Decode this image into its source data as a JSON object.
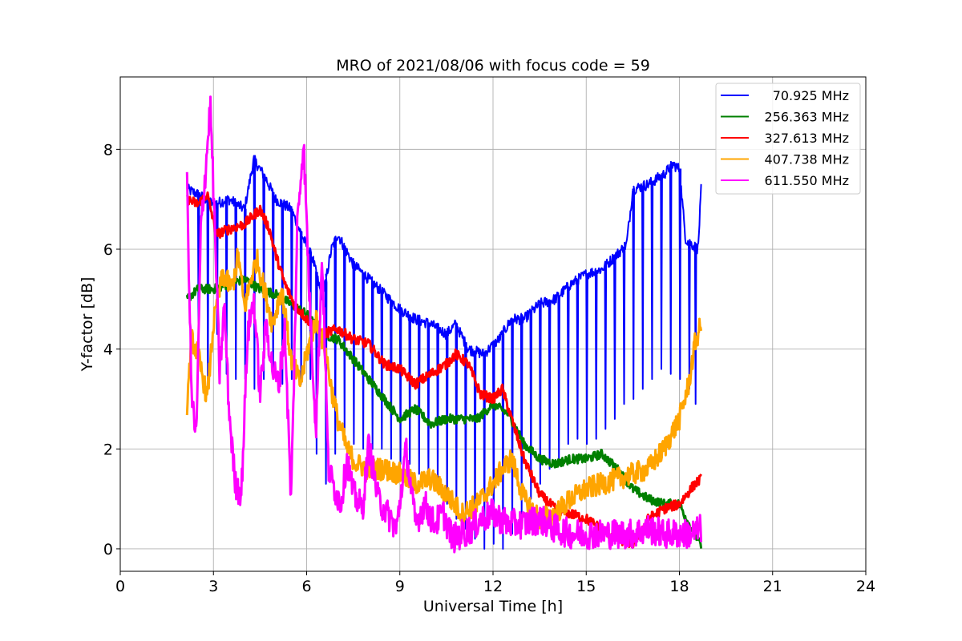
{
  "chart_data": {
    "type": "line",
    "title": "MRO of 2021/08/06 with focus code = 59",
    "xlabel": "Universal Time [h]",
    "ylabel": "Y-factor [dB]",
    "xlim": [
      0,
      24
    ],
    "ylim": [
      -0.45,
      9.45
    ],
    "xticks": [
      0,
      3,
      6,
      9,
      12,
      15,
      18,
      21,
      24
    ],
    "xtick_labels": [
      "0",
      "3",
      "6",
      "9",
      "12",
      "15",
      "18",
      "21",
      "24"
    ],
    "yticks": [
      0,
      2,
      4,
      6,
      8
    ],
    "ytick_labels": [
      "0",
      "2",
      "4",
      "6",
      "8"
    ],
    "grid": true,
    "legend_position": "top-right",
    "note": "Dense noisy time series; values below are a sampled approximation of each trace.",
    "series": [
      {
        "name": "70.925 MHz",
        "color": "#0000ff",
        "x": [
          2.15,
          2.5,
          3.0,
          3.5,
          4.0,
          4.3,
          4.7,
          5.0,
          5.5,
          5.9,
          6.2,
          6.5,
          6.8,
          7.0,
          7.5,
          8.0,
          8.5,
          9.0,
          9.5,
          10.0,
          10.5,
          10.8,
          11.2,
          11.7,
          12.2,
          12.6,
          13.0,
          13.5,
          14.0,
          14.5,
          15.0,
          15.5,
          16.0,
          16.3,
          16.5,
          17.0,
          17.5,
          17.8,
          18.0,
          18.2,
          18.6,
          18.7
        ],
        "y": [
          7.2,
          7.1,
          6.9,
          7.0,
          6.8,
          7.8,
          7.4,
          7.0,
          6.8,
          6.2,
          5.8,
          5.0,
          6.0,
          6.3,
          5.7,
          5.4,
          5.1,
          4.8,
          4.6,
          4.5,
          4.3,
          4.5,
          4.0,
          3.9,
          4.2,
          4.6,
          4.6,
          4.9,
          5.0,
          5.3,
          5.5,
          5.6,
          5.9,
          6.1,
          7.2,
          7.3,
          7.5,
          7.7,
          7.6,
          6.2,
          6.0,
          7.2
        ],
        "dips": [
          [
            2.5,
            4.0
          ],
          [
            2.8,
            3.2
          ],
          [
            3.1,
            4.3
          ],
          [
            3.4,
            3.5
          ],
          [
            3.7,
            3.4
          ],
          [
            4.0,
            3.4
          ],
          [
            4.3,
            3.2
          ],
          [
            4.6,
            3.4
          ],
          [
            4.9,
            3.4
          ],
          [
            5.2,
            3.3
          ],
          [
            5.5,
            3.4
          ],
          [
            5.8,
            3.3
          ],
          [
            6.1,
            3.4
          ],
          [
            6.3,
            1.9
          ],
          [
            6.6,
            1.3
          ],
          [
            6.9,
            1.9
          ],
          [
            7.2,
            2.2
          ],
          [
            7.5,
            2.1
          ],
          [
            7.8,
            2.0
          ],
          [
            8.1,
            2.0
          ],
          [
            8.4,
            2.0
          ],
          [
            8.7,
            1.8
          ],
          [
            9.0,
            1.7
          ],
          [
            9.3,
            1.7
          ],
          [
            9.6,
            1.5
          ],
          [
            9.9,
            1.3
          ],
          [
            10.2,
            1.2
          ],
          [
            10.5,
            0.9
          ],
          [
            10.8,
            0.6
          ],
          [
            11.1,
            0.4
          ],
          [
            11.4,
            0.2
          ],
          [
            11.7,
            0.0
          ],
          [
            12.0,
            0.1
          ],
          [
            12.3,
            0.0
          ],
          [
            12.6,
            0.3
          ],
          [
            12.9,
            0.7
          ],
          [
            13.2,
            1.0
          ],
          [
            13.5,
            1.3
          ],
          [
            13.8,
            1.6
          ],
          [
            14.1,
            1.8
          ],
          [
            14.4,
            2.1
          ],
          [
            14.7,
            2.2
          ],
          [
            15.0,
            2.1
          ],
          [
            15.3,
            2.2
          ],
          [
            15.6,
            2.4
          ],
          [
            15.9,
            2.6
          ],
          [
            16.2,
            2.9
          ],
          [
            16.5,
            3.0
          ],
          [
            16.8,
            3.2
          ],
          [
            17.1,
            3.4
          ],
          [
            17.4,
            3.6
          ],
          [
            17.7,
            3.5
          ],
          [
            18.0,
            3.4
          ],
          [
            18.3,
            3.2
          ],
          [
            18.5,
            2.9
          ]
        ]
      },
      {
        "name": "256.363 MHz",
        "color": "#008000",
        "x": [
          2.15,
          2.5,
          3.0,
          3.5,
          4.0,
          4.5,
          5.0,
          5.5,
          6.0,
          6.5,
          7.0,
          7.5,
          8.0,
          8.5,
          9.0,
          9.5,
          10.0,
          10.5,
          11.0,
          11.5,
          12.0,
          12.5,
          13.0,
          13.5,
          14.0,
          14.5,
          15.0,
          15.5,
          16.0,
          16.5,
          17.0,
          17.5,
          18.0,
          18.3,
          18.5,
          18.7
        ],
        "y": [
          5.0,
          5.2,
          5.2,
          5.3,
          5.4,
          5.2,
          5.1,
          4.9,
          4.7,
          4.3,
          4.2,
          3.8,
          3.4,
          3.0,
          2.6,
          2.8,
          2.5,
          2.6,
          2.6,
          2.6,
          2.9,
          2.7,
          2.1,
          1.8,
          1.7,
          1.8,
          1.8,
          1.9,
          1.6,
          1.2,
          1.0,
          0.9,
          0.9,
          0.5,
          0.3,
          0.05
        ]
      },
      {
        "name": "327.613 MHz",
        "color": "#ff0000",
        "x": [
          2.15,
          2.5,
          2.8,
          3.1,
          3.5,
          4.0,
          4.5,
          4.8,
          5.0,
          5.3,
          5.6,
          6.0,
          6.5,
          7.0,
          7.5,
          8.0,
          8.5,
          9.0,
          9.5,
          10.0,
          10.5,
          10.8,
          11.2,
          11.6,
          12.0,
          12.3,
          12.6,
          13.0,
          13.5,
          14.0,
          14.5,
          15.0,
          15.5,
          16.0,
          16.5,
          17.0,
          17.5,
          18.0,
          18.5,
          18.7
        ],
        "y": [
          7.0,
          6.9,
          7.1,
          6.3,
          6.4,
          6.5,
          6.8,
          6.4,
          5.9,
          5.3,
          4.9,
          4.6,
          4.3,
          4.4,
          4.2,
          4.1,
          3.7,
          3.6,
          3.3,
          3.5,
          3.7,
          3.9,
          3.7,
          3.1,
          3.0,
          3.2,
          2.6,
          1.8,
          1.1,
          0.8,
          0.7,
          0.6,
          0.4,
          0.2,
          0.1,
          0.6,
          0.8,
          0.9,
          1.3,
          1.4
        ]
      },
      {
        "name": "407.738 MHz",
        "color": "#ffa500",
        "x": [
          2.15,
          2.3,
          2.5,
          2.8,
          3.0,
          3.3,
          3.6,
          3.8,
          4.0,
          4.2,
          4.4,
          4.6,
          4.9,
          5.2,
          5.5,
          5.8,
          6.0,
          6.3,
          6.6,
          6.8,
          7.0,
          7.3,
          7.6,
          8.0,
          8.5,
          9.0,
          9.5,
          10.0,
          10.5,
          11.0,
          11.5,
          12.0,
          12.3,
          12.6,
          13.0,
          13.5,
          14.0,
          14.5,
          15.0,
          15.5,
          16.0,
          16.5,
          17.0,
          17.5,
          18.0,
          18.3,
          18.5,
          18.7
        ],
        "y": [
          2.9,
          4.2,
          3.9,
          3.0,
          4.5,
          5.5,
          5.2,
          5.9,
          4.8,
          5.4,
          5.8,
          5.3,
          4.5,
          5.2,
          3.8,
          3.3,
          3.9,
          4.6,
          4.0,
          3.2,
          2.6,
          2.0,
          1.7,
          1.6,
          1.6,
          1.5,
          1.3,
          1.4,
          1.1,
          0.7,
          0.9,
          1.3,
          1.6,
          1.8,
          1.0,
          0.6,
          0.7,
          1.0,
          1.2,
          1.3,
          1.4,
          1.5,
          1.6,
          2.0,
          2.6,
          3.3,
          4.1,
          4.5
        ]
      },
      {
        "name": "611.550 MHz",
        "color": "#ff00ff",
        "x": [
          2.15,
          2.3,
          2.45,
          2.6,
          2.75,
          2.9,
          3.05,
          3.2,
          3.35,
          3.5,
          3.7,
          3.9,
          4.1,
          4.3,
          4.5,
          4.7,
          4.9,
          5.1,
          5.3,
          5.5,
          5.7,
          5.9,
          6.1,
          6.3,
          6.5,
          6.7,
          6.9,
          7.1,
          7.3,
          7.5,
          7.8,
          8.0,
          8.3,
          8.6,
          8.9,
          9.2,
          9.5,
          9.8,
          10.1,
          10.4,
          10.7,
          11.0,
          11.3,
          11.6,
          12.0,
          12.5,
          13.0,
          13.5,
          14.0,
          14.5,
          15.0,
          15.5,
          16.0,
          16.5,
          17.0,
          17.5,
          18.0,
          18.4,
          18.7
        ],
        "y": [
          7.3,
          3.0,
          2.2,
          6.5,
          7.6,
          8.9,
          6.3,
          3.5,
          4.9,
          2.8,
          1.3,
          1.1,
          4.3,
          5.0,
          3.1,
          4.5,
          3.6,
          3.3,
          4.4,
          0.9,
          6.5,
          8.2,
          4.9,
          2.4,
          5.9,
          1.6,
          1.2,
          0.9,
          1.8,
          1.1,
          0.8,
          2.1,
          1.0,
          0.7,
          0.4,
          2.0,
          0.5,
          0.9,
          0.5,
          0.7,
          0.2,
          0.3,
          0.4,
          0.6,
          0.7,
          0.5,
          0.5,
          0.6,
          0.4,
          0.3,
          0.3,
          0.3,
          0.3,
          0.3,
          0.4,
          0.3,
          0.3,
          0.3,
          0.4
        ]
      }
    ]
  }
}
